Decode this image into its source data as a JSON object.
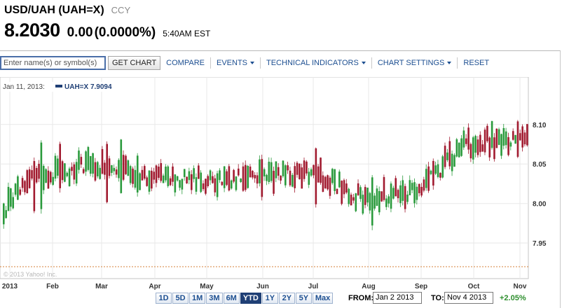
{
  "quote": {
    "title": "USD/UAH (UAH=X)",
    "exchange": "CCY",
    "price": "8.2030",
    "change": "0.00",
    "change_pct": "(0.0000%)",
    "time": "5:40AM EST"
  },
  "toolbar": {
    "search_placeholder": "Enter name(s) or symbol(s)",
    "get_chart": "GET CHART",
    "compare": "COMPARE",
    "events": "EVENTS",
    "technical_indicators": "TECHNICAL INDICATORS",
    "chart_settings": "CHART SETTINGS",
    "reset": "RESET"
  },
  "legend": {
    "date": "Jan 11, 2013:",
    "symbol_value": "UAH=X 7.9094"
  },
  "copyright": "© 2013 Yahoo! Inc.",
  "colors": {
    "up": "#2a9a3c",
    "down": "#a11a2f",
    "link": "#1d4f91",
    "reference": "#d4803a"
  },
  "range_buttons": [
    "1D",
    "5D",
    "1M",
    "3M",
    "6M",
    "YTD",
    "1Y",
    "2Y",
    "5Y",
    "Max"
  ],
  "active_range": "YTD",
  "date_range": {
    "from_label": "FROM:",
    "from_value": "Jan 2 2013",
    "to_label": "TO:",
    "to_value": "Nov 4 2013",
    "change": "+2.05%"
  },
  "chart_data": {
    "type": "candlestick",
    "x_ticks": [
      "2013",
      "Feb",
      "Mar",
      "Apr",
      "May",
      "Jun",
      "Jul",
      "Aug",
      "Sep",
      "Oct",
      "Nov"
    ],
    "y_ticks": [
      "7.95",
      "8.00",
      "8.05",
      "8.10"
    ],
    "ylim": [
      7.905,
      8.16
    ],
    "reference_value": 7.92,
    "grid": true
  }
}
